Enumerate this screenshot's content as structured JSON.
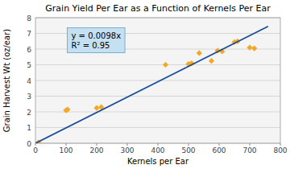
{
  "chart_data": {
    "type": "scatter",
    "title": "Grain Yield Per Ear as a Function of Kernels Per Ear",
    "x_label": "Kernels per Ear",
    "y_label": "Grain Harvest Wt (oz/ear)",
    "series": [
      {
        "type": "scatter",
        "color": "#F5A623",
        "marker": "diamond",
        "x": [
          10,
          100,
          105,
          200,
          215,
          425,
          500,
          510,
          535,
          575,
          595,
          610,
          650,
          660,
          700,
          715
        ],
        "values": [
          0.05,
          2.1,
          2.15,
          2.25,
          2.3,
          5.0,
          5.05,
          5.1,
          5.75,
          5.25,
          5.9,
          5.85,
          6.45,
          6.5,
          6.1,
          6.05
        ]
      },
      {
        "type": "line",
        "color": "#1A4E96",
        "line_style": "solid",
        "x": [
          0,
          760
        ],
        "values": [
          0,
          7.448
        ]
      }
    ],
    "annotations": [
      "y = 0.0098x",
      "R² = 0.95"
    ],
    "xlim": [
      0,
      800
    ],
    "ylim": [
      0,
      8
    ],
    "xticks": [
      0,
      100,
      200,
      300,
      400,
      500,
      600,
      700,
      800
    ],
    "yticks": [
      0,
      1,
      2,
      3,
      4,
      5,
      6,
      7,
      8
    ],
    "grid": true
  }
}
